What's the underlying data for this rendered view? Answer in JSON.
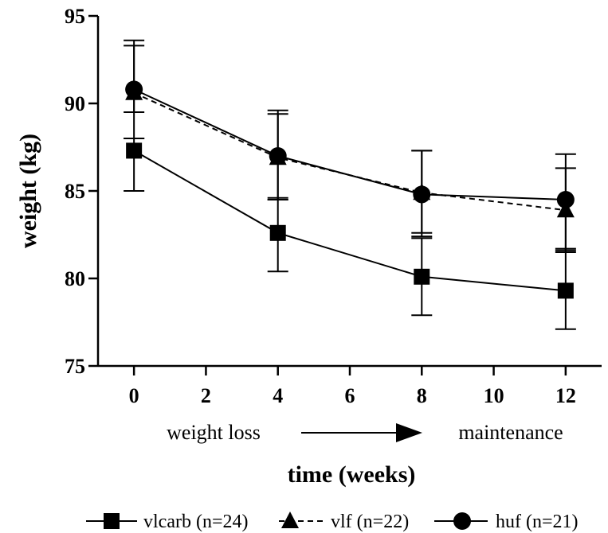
{
  "chart_data": {
    "type": "line",
    "title": "",
    "xlabel": "time (weeks)",
    "ylabel": "weight (kg)",
    "xlim": [
      -1,
      13
    ],
    "ylim": [
      75,
      95
    ],
    "xticks": [
      0,
      2,
      4,
      6,
      8,
      10,
      12
    ],
    "yticks": [
      75,
      80,
      85,
      90,
      95
    ],
    "grid": false,
    "legend_position": "bottom",
    "annotations": {
      "left": "weight loss",
      "right": "maintenance"
    },
    "series": [
      {
        "name": "vlcarb (n=24)",
        "marker": "square",
        "line": "solid",
        "x": [
          0,
          4,
          8,
          12
        ],
        "y": [
          87.3,
          82.6,
          80.1,
          79.3
        ],
        "err_low": [
          85.0,
          80.4,
          77.9,
          77.1
        ],
        "err_high": [
          88.0,
          84.6,
          82.3,
          81.7
        ]
      },
      {
        "name": "vlf (n=22)",
        "marker": "triangle",
        "line": "dashed",
        "x": [
          0,
          4,
          8,
          12
        ],
        "y": [
          90.6,
          86.9,
          84.9,
          83.9
        ],
        "err_low": [
          88.0,
          84.5,
          82.4,
          81.5
        ],
        "err_high": [
          93.3,
          89.4,
          87.3,
          86.3
        ]
      },
      {
        "name": "huf (n=21)",
        "marker": "circle",
        "line": "solid",
        "x": [
          0,
          4,
          8,
          12
        ],
        "y": [
          90.8,
          87.0,
          84.8,
          84.5
        ],
        "err_low": [
          89.5,
          84.5,
          82.6,
          81.6
        ],
        "err_high": [
          93.6,
          89.6,
          87.3,
          87.1
        ]
      }
    ]
  }
}
